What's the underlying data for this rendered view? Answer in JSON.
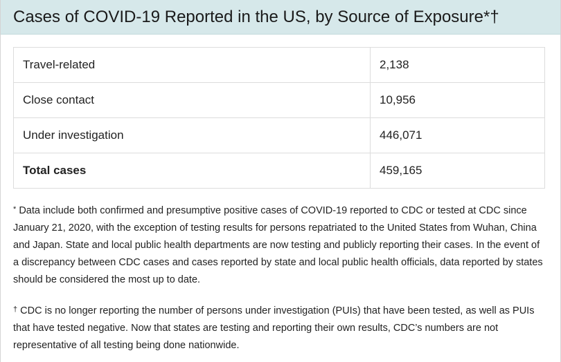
{
  "header": {
    "title": "Cases of COVID-19 Reported in the US, by Source of Exposure*†"
  },
  "table": {
    "rows": [
      {
        "label": "Travel-related",
        "value": "2,138"
      },
      {
        "label": "Close contact",
        "value": "10,956"
      },
      {
        "label": "Under investigation",
        "value": "446,071"
      }
    ],
    "total": {
      "label": "Total cases",
      "value": "459,165"
    }
  },
  "footnotes": [
    {
      "mark": "*",
      "text": "Data include both confirmed and presumptive positive cases of COVID-19 reported to CDC or tested at CDC since January 21, 2020, with the exception of testing results for persons repatriated to the United States from Wuhan, China and Japan. State and local public health departments are now testing and publicly reporting their cases. In the event of a discrepancy between CDC cases and cases reported by state and local public health officials, data reported by states should be considered the most up to date."
    },
    {
      "mark": "†",
      "text": "CDC is no longer reporting the number of persons under investigation (PUIs) that have been tested, as well as PUIs that have tested negative. Now that states are testing and reporting their own results, CDC’s numbers are not representative of all testing being done nationwide."
    }
  ]
}
